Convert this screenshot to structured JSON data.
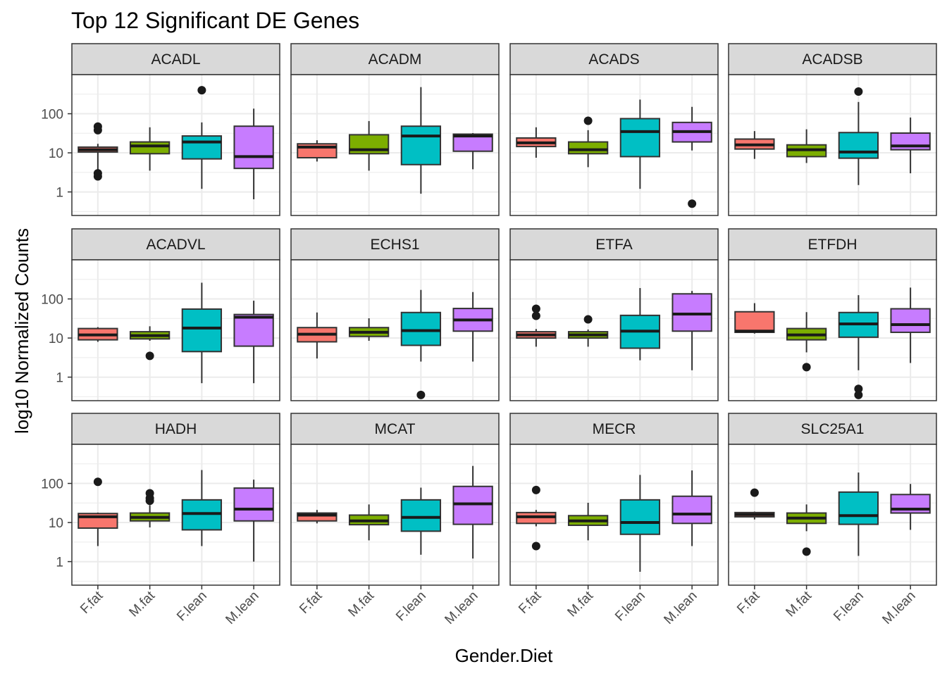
{
  "chart_data": {
    "type": "boxplot",
    "title": "Top 12 Significant DE Genes",
    "xlabel": "Gender.Diet",
    "ylabel": "log10 Normalized Counts",
    "yscale": "log10",
    "ylim": [
      0.25,
      1000
    ],
    "yticks": [
      {
        "value": 1,
        "label": "1"
      },
      {
        "value": 10,
        "label": "10"
      },
      {
        "value": 100,
        "label": "100"
      }
    ],
    "categories": [
      "F.fat",
      "M.fat",
      "F.lean",
      "M.lean"
    ],
    "colors": [
      "#f8766d",
      "#7cae00",
      "#00bfc4",
      "#c77cff"
    ],
    "grid": true,
    "facets": [
      {
        "name": "ACADL",
        "boxes": [
          {
            "min": 3.5,
            "q1": 10.5,
            "median": 12,
            "q3": 14,
            "max": 17,
            "outliers": [
              2.5,
              3,
              38,
              47
            ]
          },
          {
            "min": 3.5,
            "q1": 9.5,
            "median": 15,
            "q3": 19,
            "max": 45,
            "outliers": []
          },
          {
            "min": 1.2,
            "q1": 7,
            "median": 19,
            "q3": 27,
            "max": 60,
            "outliers": [
              400
            ]
          },
          {
            "min": 0.65,
            "q1": 4,
            "median": 8,
            "q3": 48,
            "max": 135,
            "outliers": []
          }
        ]
      },
      {
        "name": "ACADM",
        "boxes": [
          {
            "min": 6,
            "q1": 7.5,
            "median": 14,
            "q3": 17,
            "max": 21,
            "outliers": []
          },
          {
            "min": 3.5,
            "q1": 9.5,
            "median": 12,
            "q3": 29,
            "max": 65,
            "outliers": []
          },
          {
            "min": 0.9,
            "q1": 5,
            "median": 27,
            "q3": 48,
            "max": 480,
            "outliers": []
          },
          {
            "min": 3.8,
            "q1": 11,
            "median": 27,
            "q3": 30,
            "max": 32,
            "outliers": []
          }
        ]
      },
      {
        "name": "ACADS",
        "boxes": [
          {
            "min": 7.5,
            "q1": 14.5,
            "median": 18,
            "q3": 24,
            "max": 45,
            "outliers": []
          },
          {
            "min": 4.3,
            "q1": 9.5,
            "median": 12,
            "q3": 19,
            "max": 38,
            "outliers": [
              66
            ]
          },
          {
            "min": 1.2,
            "q1": 8,
            "median": 35,
            "q3": 75,
            "max": 230,
            "outliers": []
          },
          {
            "min": 11.5,
            "q1": 19,
            "median": 35,
            "q3": 60,
            "max": 150,
            "outliers": [
              0.5
            ]
          }
        ]
      },
      {
        "name": "ACADSB",
        "boxes": [
          {
            "min": 7,
            "q1": 12.5,
            "median": 16,
            "q3": 22.5,
            "max": 36,
            "outliers": []
          },
          {
            "min": 5.5,
            "q1": 8,
            "median": 12,
            "q3": 16,
            "max": 40,
            "outliers": []
          },
          {
            "min": 1.5,
            "q1": 7.3,
            "median": 10.5,
            "q3": 33,
            "max": 200,
            "outliers": [
              370
            ]
          },
          {
            "min": 3,
            "q1": 12,
            "median": 15,
            "q3": 32,
            "max": 80,
            "outliers": []
          }
        ]
      },
      {
        "name": "ACADVL",
        "boxes": [
          {
            "min": 8,
            "q1": 9,
            "median": 12,
            "q3": 17.5,
            "max": 19,
            "outliers": []
          },
          {
            "min": 8.5,
            "q1": 9.5,
            "median": 11.5,
            "q3": 14.5,
            "max": 20,
            "outliers": [
              3.5
            ]
          },
          {
            "min": 0.7,
            "q1": 4.5,
            "median": 18,
            "q3": 55,
            "max": 260,
            "outliers": []
          },
          {
            "min": 0.7,
            "q1": 6.2,
            "median": 34,
            "q3": 40,
            "max": 90,
            "outliers": []
          }
        ]
      },
      {
        "name": "ECHS1",
        "boxes": [
          {
            "min": 3,
            "q1": 8,
            "median": 12.5,
            "q3": 18.5,
            "max": 45,
            "outliers": []
          },
          {
            "min": 8.5,
            "q1": 11,
            "median": 14,
            "q3": 18.5,
            "max": 32,
            "outliers": []
          },
          {
            "min": 2.5,
            "q1": 6.5,
            "median": 15.5,
            "q3": 45,
            "max": 170,
            "outliers": [
              0.35
            ]
          },
          {
            "min": 2.5,
            "q1": 15,
            "median": 29,
            "q3": 57,
            "max": 150,
            "outliers": []
          }
        ]
      },
      {
        "name": "ETFA",
        "boxes": [
          {
            "min": 6,
            "q1": 10,
            "median": 12,
            "q3": 14.5,
            "max": 17,
            "outliers": [
              37,
              56
            ]
          },
          {
            "min": 6,
            "q1": 10,
            "median": 12,
            "q3": 14.5,
            "max": 16.5,
            "outliers": [
              30
            ]
          },
          {
            "min": 2.7,
            "q1": 5.5,
            "median": 15,
            "q3": 38,
            "max": 190,
            "outliers": []
          },
          {
            "min": 1.5,
            "q1": 15,
            "median": 41,
            "q3": 135,
            "max": 160,
            "outliers": []
          }
        ]
      },
      {
        "name": "ETFDH",
        "boxes": [
          {
            "min": 13,
            "q1": 14,
            "median": 15,
            "q3": 47,
            "max": 78,
            "outliers": []
          },
          {
            "min": 4.3,
            "q1": 9,
            "median": 12,
            "q3": 17.5,
            "max": 46,
            "outliers": [
              1.8
            ]
          },
          {
            "min": 1.5,
            "q1": 10.5,
            "median": 23,
            "q3": 45,
            "max": 125,
            "outliers": [
              0.35,
              0.5
            ]
          },
          {
            "min": 2.3,
            "q1": 14,
            "median": 22,
            "q3": 56,
            "max": 195,
            "outliers": []
          }
        ]
      },
      {
        "name": "HADH",
        "boxes": [
          {
            "min": 2.5,
            "q1": 7.2,
            "median": 14,
            "q3": 17,
            "max": 18,
            "outliers": [
              110
            ]
          },
          {
            "min": 7.5,
            "q1": 11,
            "median": 13.5,
            "q3": 17.5,
            "max": 28,
            "outliers": [
              36,
              42,
              56
            ]
          },
          {
            "min": 2.5,
            "q1": 6.5,
            "median": 17,
            "q3": 38,
            "max": 220,
            "outliers": []
          },
          {
            "min": 1,
            "q1": 11,
            "median": 22,
            "q3": 76,
            "max": 125,
            "outliers": []
          }
        ]
      },
      {
        "name": "MCAT",
        "boxes": [
          {
            "min": 9.5,
            "q1": 11,
            "median": 15.5,
            "q3": 17.5,
            "max": 21,
            "outliers": []
          },
          {
            "min": 3.5,
            "q1": 8.8,
            "median": 11,
            "q3": 15.5,
            "max": 29,
            "outliers": []
          },
          {
            "min": 1.5,
            "q1": 6,
            "median": 13.5,
            "q3": 38,
            "max": 78,
            "outliers": []
          },
          {
            "min": 1.2,
            "q1": 9,
            "median": 30,
            "q3": 84,
            "max": 280,
            "outliers": []
          }
        ]
      },
      {
        "name": "MECR",
        "boxes": [
          {
            "min": 8,
            "q1": 9.5,
            "median": 14,
            "q3": 18,
            "max": 21,
            "outliers": [
              2.5,
              68
            ]
          },
          {
            "min": 3.5,
            "q1": 8.5,
            "median": 11,
            "q3": 15,
            "max": 32,
            "outliers": []
          },
          {
            "min": 0.55,
            "q1": 5,
            "median": 10,
            "q3": 38,
            "max": 165,
            "outliers": []
          },
          {
            "min": 2.5,
            "q1": 9.5,
            "median": 16.5,
            "q3": 47,
            "max": 215,
            "outliers": []
          }
        ]
      },
      {
        "name": "SLC25A1",
        "boxes": [
          {
            "min": 12,
            "q1": 14,
            "median": 16,
            "q3": 18,
            "max": 19,
            "outliers": [
              58
            ]
          },
          {
            "min": 6,
            "q1": 9.5,
            "median": 13,
            "q3": 17.5,
            "max": 29,
            "outliers": [
              1.8
            ]
          },
          {
            "min": 1.4,
            "q1": 9,
            "median": 15,
            "q3": 60,
            "max": 190,
            "outliers": []
          },
          {
            "min": 6.5,
            "q1": 17.5,
            "median": 22,
            "q3": 52,
            "max": 97,
            "outliers": []
          }
        ]
      }
    ]
  }
}
